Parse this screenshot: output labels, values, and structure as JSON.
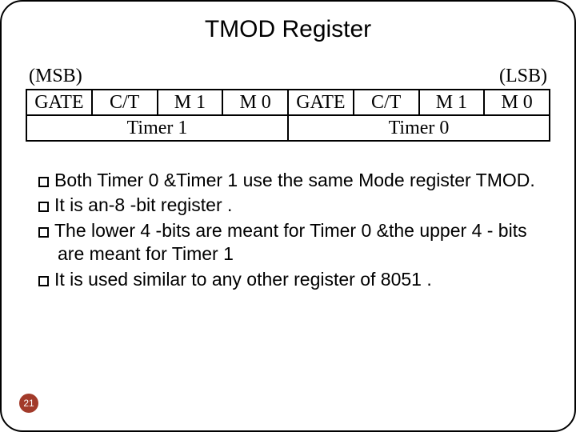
{
  "title": "TMOD Register",
  "endLabels": {
    "msb": "(MSB)",
    "lsb": "(LSB)"
  },
  "register": {
    "bits": [
      "GATE",
      "C/T",
      "M 1",
      "M 0",
      "GATE",
      "C/T",
      "M 1",
      "M 0"
    ],
    "groups": [
      "Timer 1",
      "Timer 0"
    ]
  },
  "bullets": [
    "Both Timer 0 &Timer 1 use the same Mode register TMOD.",
    "It is an-8 -bit register .",
    "The lower 4 -bits are meant for Timer 0 &the upper 4 - bits are meant for Timer 1",
    "It is used similar to any other register of 8051 ."
  ],
  "pageNumber": "21",
  "style": {
    "title_fontsize": 30,
    "cell_fontsize": 24,
    "bullet_fontsize": 23,
    "border_color": "#000000",
    "background_color": "#ffffff",
    "pagenum_bg": "#a23a2a",
    "pagenum_fg": "#ffffff",
    "cell_font": "Times New Roman",
    "body_font": "Arial"
  }
}
